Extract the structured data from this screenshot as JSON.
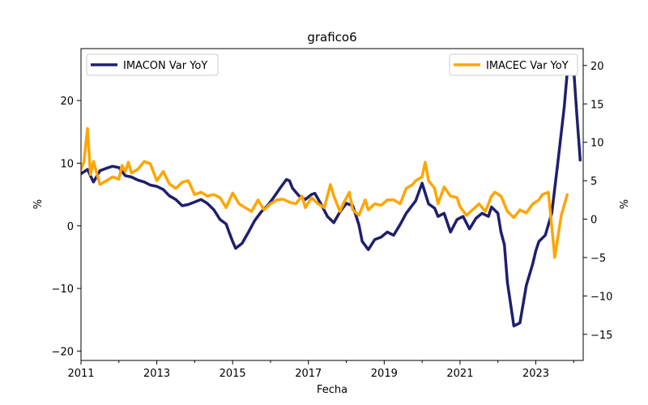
{
  "chart_data": {
    "type": "line",
    "title": "grafico6",
    "xlabel": "Fecha",
    "ylabel_left": "%",
    "ylabel_right": "%",
    "xlim": [
      2011.0,
      2024.25
    ],
    "ylim_left": [
      -21.5,
      28.3
    ],
    "ylim_right": [
      -18.4,
      22.2
    ],
    "x_ticks": [
      2011,
      2013,
      2015,
      2017,
      2019,
      2021,
      2023
    ],
    "y_ticks_left": [
      20,
      10,
      0,
      -10,
      -20
    ],
    "y_ticks_right": [
      20,
      15,
      10,
      5,
      0,
      -5,
      -10,
      -15
    ],
    "grid": false,
    "series": [
      {
        "name": "IMACON Var YoY",
        "axis": "left",
        "color": "#1f1f6e",
        "legend_position": "upper left",
        "points": [
          [
            2011.0,
            8.3
          ],
          [
            2011.17,
            9.0
          ],
          [
            2011.33,
            7.0
          ],
          [
            2011.5,
            8.8
          ],
          [
            2011.67,
            9.2
          ],
          [
            2011.83,
            9.5
          ],
          [
            2012.0,
            9.3
          ],
          [
            2012.17,
            8.0
          ],
          [
            2012.33,
            7.8
          ],
          [
            2012.5,
            7.3
          ],
          [
            2012.67,
            7.0
          ],
          [
            2012.83,
            6.5
          ],
          [
            2013.0,
            6.3
          ],
          [
            2013.17,
            5.8
          ],
          [
            2013.33,
            4.8
          ],
          [
            2013.5,
            4.2
          ],
          [
            2013.67,
            3.2
          ],
          [
            2013.83,
            3.4
          ],
          [
            2014.0,
            3.8
          ],
          [
            2014.17,
            4.2
          ],
          [
            2014.33,
            3.6
          ],
          [
            2014.5,
            2.6
          ],
          [
            2014.67,
            1.0
          ],
          [
            2014.83,
            0.3
          ],
          [
            2014.92,
            -1.2
          ],
          [
            2015.0,
            -2.5
          ],
          [
            2015.08,
            -3.6
          ],
          [
            2015.25,
            -2.8
          ],
          [
            2015.42,
            -1.0
          ],
          [
            2015.58,
            0.8
          ],
          [
            2015.75,
            2.2
          ],
          [
            2015.92,
            3.2
          ],
          [
            2016.08,
            4.5
          ],
          [
            2016.25,
            6.0
          ],
          [
            2016.42,
            7.4
          ],
          [
            2016.5,
            7.2
          ],
          [
            2016.58,
            6.0
          ],
          [
            2016.75,
            4.8
          ],
          [
            2016.92,
            4.2
          ],
          [
            2017.08,
            5.0
          ],
          [
            2017.17,
            5.2
          ],
          [
            2017.33,
            3.5
          ],
          [
            2017.5,
            1.5
          ],
          [
            2017.67,
            0.5
          ],
          [
            2017.83,
            2.2
          ],
          [
            2018.0,
            3.6
          ],
          [
            2018.17,
            3.2
          ],
          [
            2018.33,
            0.2
          ],
          [
            2018.42,
            -2.5
          ],
          [
            2018.58,
            -3.8
          ],
          [
            2018.75,
            -2.2
          ],
          [
            2018.92,
            -1.8
          ],
          [
            2019.08,
            -1.0
          ],
          [
            2019.25,
            -1.5
          ],
          [
            2019.42,
            0.2
          ],
          [
            2019.58,
            2.0
          ],
          [
            2019.83,
            4.0
          ],
          [
            2019.92,
            5.5
          ],
          [
            2020.0,
            6.8
          ],
          [
            2020.17,
            3.5
          ],
          [
            2020.33,
            2.8
          ],
          [
            2020.42,
            1.5
          ],
          [
            2020.58,
            2.0
          ],
          [
            2020.75,
            -1.0
          ],
          [
            2020.92,
            1.0
          ],
          [
            2021.08,
            1.5
          ],
          [
            2021.25,
            -0.5
          ],
          [
            2021.42,
            1.2
          ],
          [
            2021.58,
            2.0
          ],
          [
            2021.75,
            1.5
          ],
          [
            2021.83,
            3.0
          ],
          [
            2022.0,
            2.0
          ],
          [
            2022.08,
            -1.0
          ],
          [
            2022.17,
            -3.0
          ],
          [
            2022.25,
            -9.0
          ],
          [
            2022.42,
            -16.0
          ],
          [
            2022.58,
            -15.5
          ],
          [
            2022.75,
            -9.5
          ],
          [
            2022.92,
            -6.0
          ],
          [
            2023.0,
            -4.0
          ],
          [
            2023.08,
            -2.5
          ],
          [
            2023.25,
            -1.5
          ],
          [
            2023.42,
            2.0
          ],
          [
            2023.58,
            10.0
          ],
          [
            2023.75,
            19.0
          ],
          [
            2023.83,
            24.5
          ],
          [
            2023.92,
            26.0
          ],
          [
            2024.0,
            25.0
          ],
          [
            2024.08,
            18.0
          ],
          [
            2024.17,
            10.5
          ]
        ]
      },
      {
        "name": "IMACEC Var YoY",
        "axis": "right",
        "color": "#ffa500",
        "legend_position": "upper right",
        "points": [
          [
            2011.0,
            6.5
          ],
          [
            2011.08,
            7.5
          ],
          [
            2011.17,
            11.8
          ],
          [
            2011.25,
            5.8
          ],
          [
            2011.33,
            7.5
          ],
          [
            2011.5,
            4.5
          ],
          [
            2011.67,
            5.0
          ],
          [
            2011.83,
            5.5
          ],
          [
            2012.0,
            5.2
          ],
          [
            2012.08,
            7.0
          ],
          [
            2012.17,
            6.2
          ],
          [
            2012.25,
            7.4
          ],
          [
            2012.33,
            6.0
          ],
          [
            2012.5,
            6.5
          ],
          [
            2012.67,
            7.5
          ],
          [
            2012.83,
            7.2
          ],
          [
            2013.0,
            5.0
          ],
          [
            2013.17,
            6.2
          ],
          [
            2013.33,
            4.6
          ],
          [
            2013.5,
            4.0
          ],
          [
            2013.67,
            4.8
          ],
          [
            2013.83,
            5.0
          ],
          [
            2014.0,
            3.2
          ],
          [
            2014.17,
            3.5
          ],
          [
            2014.33,
            3.0
          ],
          [
            2014.5,
            3.2
          ],
          [
            2014.67,
            2.8
          ],
          [
            2014.83,
            1.5
          ],
          [
            2015.0,
            3.4
          ],
          [
            2015.17,
            2.0
          ],
          [
            2015.33,
            1.5
          ],
          [
            2015.5,
            1.0
          ],
          [
            2015.67,
            2.5
          ],
          [
            2015.83,
            1.2
          ],
          [
            2016.0,
            2.0
          ],
          [
            2016.17,
            2.5
          ],
          [
            2016.33,
            2.6
          ],
          [
            2016.5,
            2.2
          ],
          [
            2016.67,
            2.0
          ],
          [
            2016.83,
            3.0
          ],
          [
            2016.92,
            1.5
          ],
          [
            2017.08,
            2.8
          ],
          [
            2017.25,
            2.0
          ],
          [
            2017.42,
            1.5
          ],
          [
            2017.58,
            4.5
          ],
          [
            2017.67,
            3.0
          ],
          [
            2017.83,
            1.0
          ],
          [
            2017.92,
            2.0
          ],
          [
            2018.08,
            3.5
          ],
          [
            2018.17,
            1.2
          ],
          [
            2018.33,
            0.5
          ],
          [
            2018.5,
            2.5
          ],
          [
            2018.58,
            1.2
          ],
          [
            2018.75,
            2.0
          ],
          [
            2018.92,
            1.8
          ],
          [
            2019.08,
            2.5
          ],
          [
            2019.25,
            2.5
          ],
          [
            2019.42,
            2.0
          ],
          [
            2019.58,
            4.0
          ],
          [
            2019.75,
            4.5
          ],
          [
            2019.83,
            5.0
          ],
          [
            2020.0,
            5.5
          ],
          [
            2020.08,
            7.4
          ],
          [
            2020.17,
            5.0
          ],
          [
            2020.33,
            4.0
          ],
          [
            2020.42,
            2.0
          ],
          [
            2020.58,
            4.2
          ],
          [
            2020.75,
            3.0
          ],
          [
            2020.92,
            2.8
          ],
          [
            2021.0,
            1.6
          ],
          [
            2021.17,
            0.5
          ],
          [
            2021.33,
            1.2
          ],
          [
            2021.5,
            2.0
          ],
          [
            2021.67,
            1.0
          ],
          [
            2021.83,
            3.0
          ],
          [
            2021.92,
            3.5
          ],
          [
            2022.08,
            3.0
          ],
          [
            2022.25,
            1.0
          ],
          [
            2022.42,
            0.2
          ],
          [
            2022.58,
            1.2
          ],
          [
            2022.75,
            0.8
          ],
          [
            2022.92,
            2.0
          ],
          [
            2023.08,
            2.5
          ],
          [
            2023.17,
            3.2
          ],
          [
            2023.33,
            3.5
          ],
          [
            2023.5,
            -5.0
          ],
          [
            2023.67,
            0.5
          ],
          [
            2023.83,
            3.2
          ]
        ]
      }
    ]
  }
}
